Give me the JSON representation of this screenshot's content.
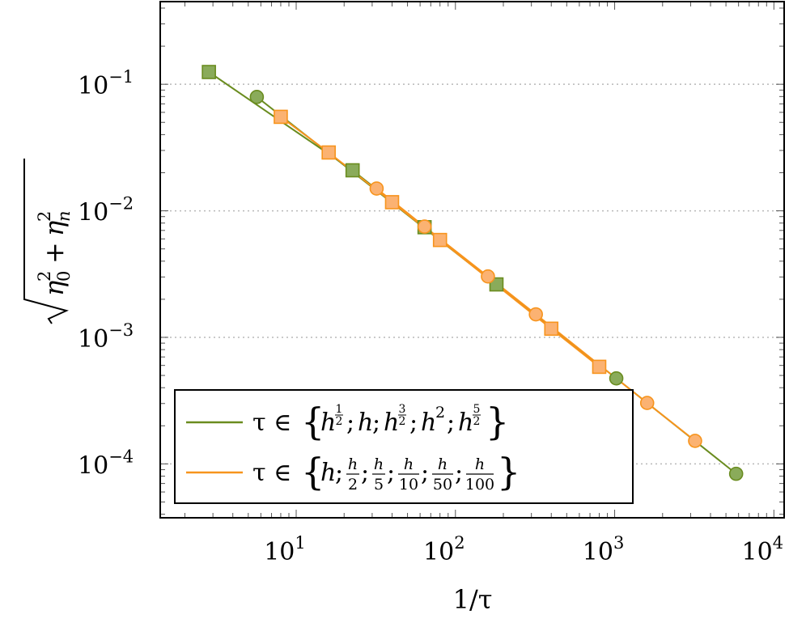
{
  "chart_data": {
    "type": "scatter",
    "x_scale": "log",
    "y_scale": "log",
    "xlabel": "1/τ",
    "ylabel": "√(η₀² + ηₙ²)",
    "xlim": [
      1.4,
      11600
    ],
    "ylim": [
      3.75e-05,
      0.45
    ],
    "x_ticks": [
      {
        "value": 10,
        "base": "10",
        "exp": "1"
      },
      {
        "value": 100,
        "base": "10",
        "exp": "2"
      },
      {
        "value": 1000,
        "base": "10",
        "exp": "3"
      },
      {
        "value": 10000,
        "base": "10",
        "exp": "4"
      }
    ],
    "y_ticks": [
      {
        "value": 0.1,
        "base": "10",
        "exp": "−1"
      },
      {
        "value": 0.01,
        "base": "10",
        "exp": "−2"
      },
      {
        "value": 0.001,
        "base": "10",
        "exp": "−3"
      },
      {
        "value": 0.0001,
        "base": "10",
        "exp": "−4"
      }
    ],
    "grid": "major y dotted",
    "legend_position": "bottom-left",
    "series": [
      {
        "color": "#6a8c1f",
        "marker_fill": "#8aab5a",
        "label_text": "τ ∈ {",
        "label_terms": [
          {
            "base": "h",
            "num": "1",
            "den": "2"
          },
          {
            "base": "h"
          },
          {
            "base": "h",
            "num": "3",
            "den": "2"
          },
          {
            "base": "h",
            "exp": "2"
          },
          {
            "base": "h",
            "num": "5",
            "den": "2"
          }
        ],
        "label_close": "}",
        "curves": [
          {
            "marker": "square",
            "points": [
              [
                2.83,
                0.125
              ],
              [
                22.6,
                0.0209
              ],
              [
                64,
                0.00742
              ],
              [
                181,
                0.00262
              ]
            ]
          },
          {
            "marker": "circle",
            "points": [
              [
                5.66,
                0.0794
              ],
              [
                1024,
                0.000474
              ],
              [
                5793,
                8.35e-05
              ]
            ]
          }
        ]
      },
      {
        "color": "#f7941d",
        "marker_fill": "#fbb272",
        "label_text": "τ ∈ {",
        "label_terms": [
          {
            "base": "h"
          },
          {
            "num": "h",
            "den": "2"
          },
          {
            "num": "h",
            "den": "5"
          },
          {
            "num": "h",
            "den": "10"
          },
          {
            "num": "h",
            "den": "50"
          },
          {
            "num": "h",
            "den": "100"
          }
        ],
        "label_close": "}",
        "curves": [
          {
            "marker": "square",
            "points": [
              [
                8,
                0.0553
              ],
              [
                16,
                0.0289
              ],
              [
                40,
                0.0117
              ],
              [
                80,
                0.00588
              ],
              [
                400,
                0.00117
              ],
              [
                800,
                0.000585
              ]
            ]
          },
          {
            "marker": "circle",
            "points": [
              [
                32,
                0.015
              ],
              [
                64,
                0.0075
              ],
              [
                160,
                0.00303
              ],
              [
                320,
                0.00152
              ],
              [
                1600,
                0.000303
              ],
              [
                3200,
                0.000152
              ]
            ]
          }
        ]
      }
    ]
  }
}
